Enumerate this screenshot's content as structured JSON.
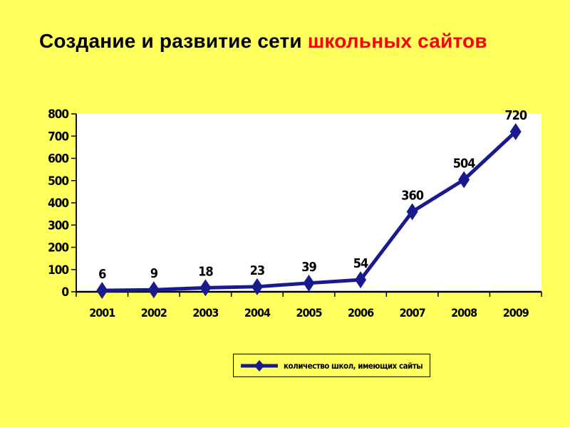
{
  "page": {
    "background": "#FFFF5E"
  },
  "title": {
    "black_part": "Создание и развитие сети ",
    "red_part": "школьных сайтов",
    "red_color": "#FF0000",
    "black_color": "#000000"
  },
  "chart_data": {
    "type": "line",
    "title": "",
    "xlabel": "",
    "ylabel": "",
    "categories": [
      "2001",
      "2002",
      "2003",
      "2004",
      "2005",
      "2006",
      "2007",
      "2008",
      "2009"
    ],
    "series": [
      {
        "name": "количество школ, имеющих сайты",
        "values": [
          6,
          9,
          18,
          23,
          39,
          54,
          360,
          504,
          720
        ],
        "color": "#1A1A8F",
        "marker": "diamond"
      }
    ],
    "ylim": [
      0,
      800
    ],
    "ytick_step": 100,
    "yticks": [
      0,
      100,
      200,
      300,
      400,
      500,
      600,
      700,
      800
    ],
    "grid": false,
    "data_labels": true,
    "plot_bg": "#FFFFFF",
    "axis_color": "#000000",
    "legend_position": "bottom"
  }
}
